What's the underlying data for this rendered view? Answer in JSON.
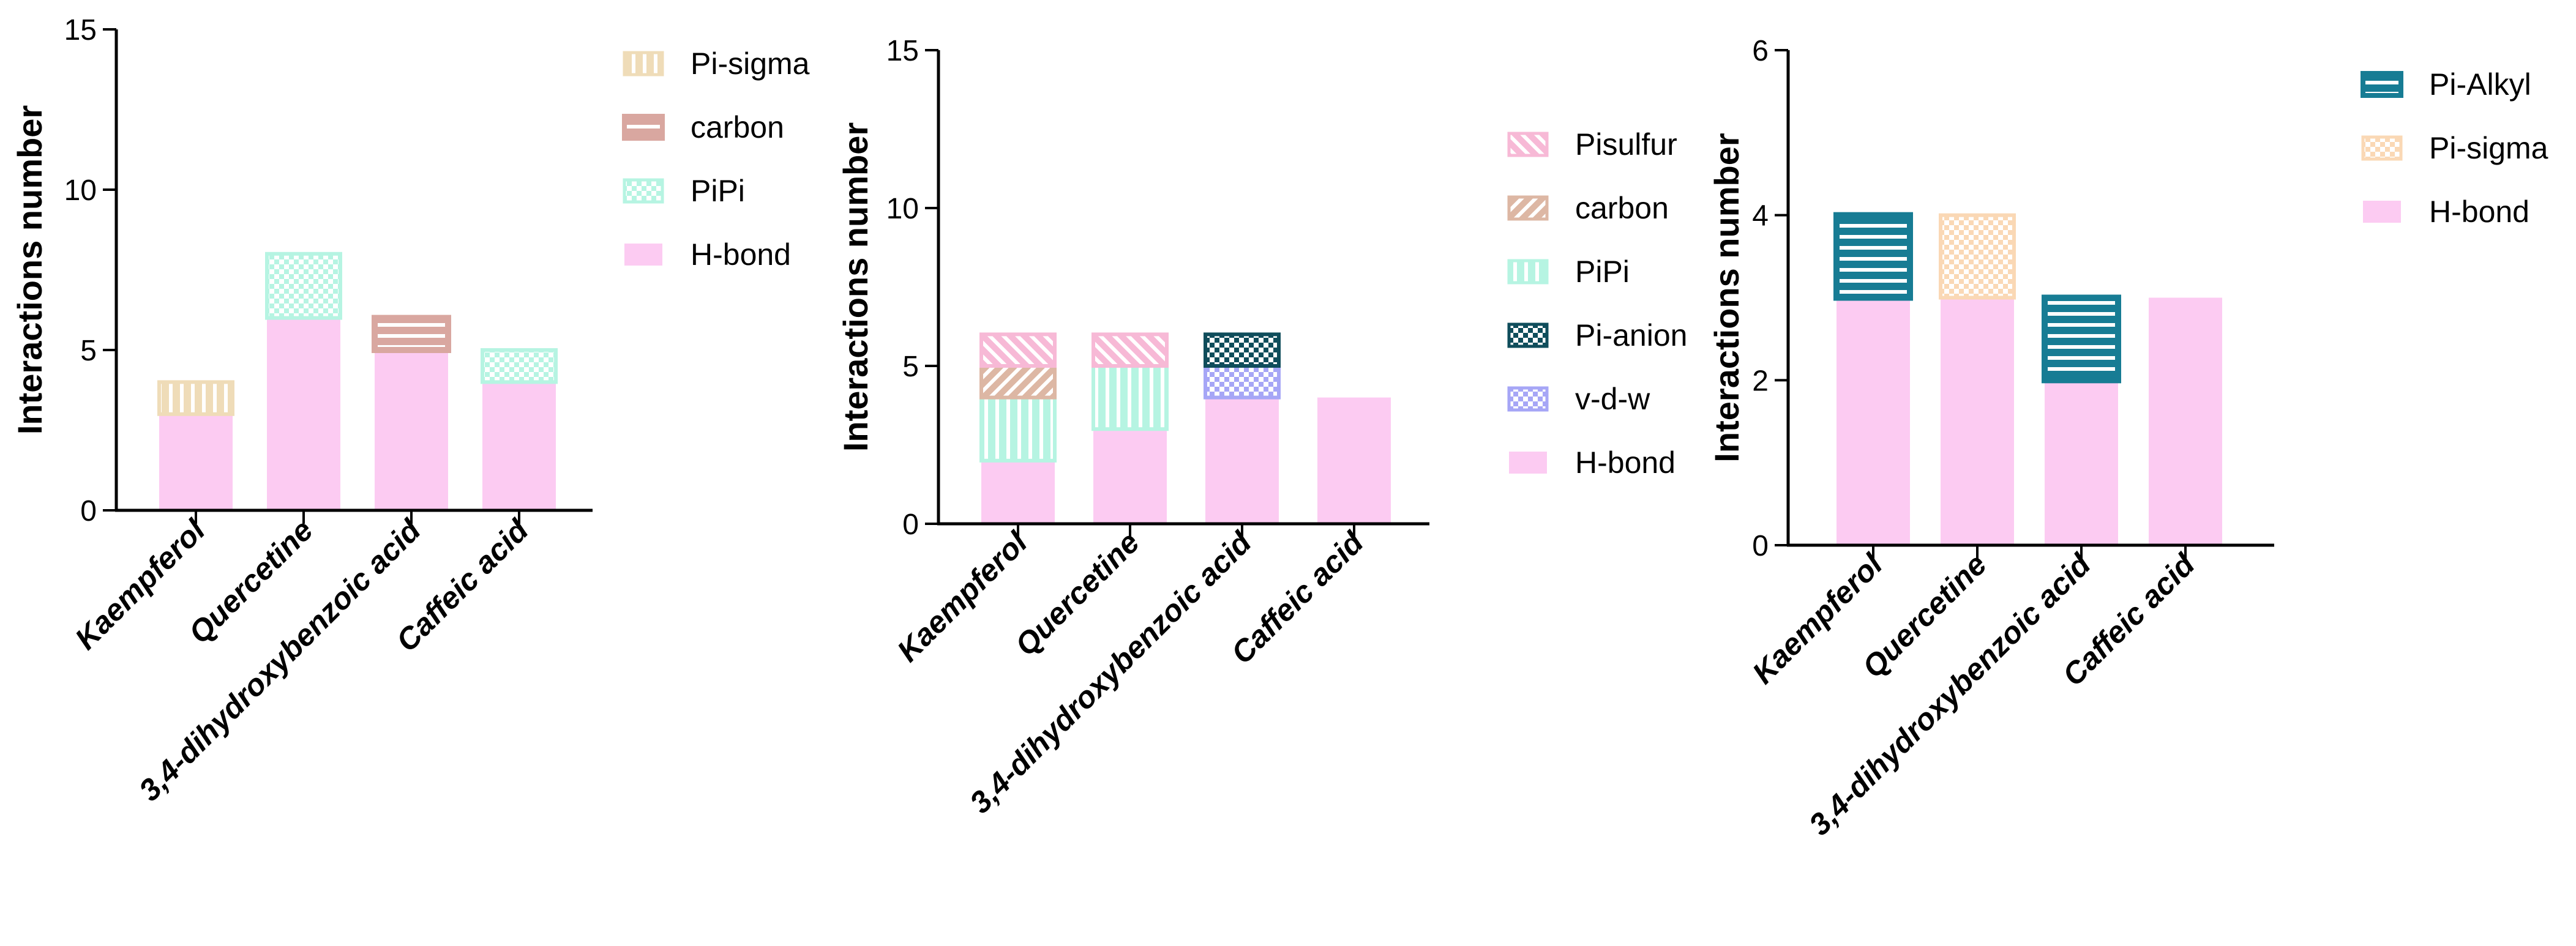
{
  "colors": {
    "hbond": "#fccbf2",
    "pipi": "#b6f4e2",
    "carbon": "#d9a7a0",
    "carbon_b": "#ddb7a4",
    "pisigma_1": "#efdcb8",
    "pisigma_3": "#fad8b5",
    "pisulfur": "#f7b9d6",
    "pianion": "#0f4d5b",
    "vdw": "#a6a6f6",
    "pialkyl": "#177c94"
  },
  "chart_data": [
    {
      "type": "bar",
      "stacked": true,
      "categories": [
        "Kaempferol",
        "Quercetine",
        "3,4-dihydroxybenzoic acid",
        "Caffeic acid"
      ],
      "ylabel": "Interactions number",
      "ylim": [
        0,
        15
      ],
      "yticks": [
        "0",
        "5",
        "10",
        "15"
      ],
      "series": [
        {
          "name": "H-bond",
          "values": [
            3,
            6,
            5,
            4
          ],
          "color": "#fccbf2",
          "pattern": "solid"
        },
        {
          "name": "PiPi",
          "values": [
            0,
            2,
            0,
            1
          ],
          "color": "#b6f4e2",
          "pattern": "checker"
        },
        {
          "name": "carbon",
          "values": [
            0,
            0,
            1,
            0
          ],
          "color": "#d9a7a0",
          "pattern": "hstripe"
        },
        {
          "name": "Pi-sigma",
          "values": [
            1,
            0,
            0,
            0
          ],
          "color": "#efdcb8",
          "pattern": "vstripe"
        }
      ],
      "legend_order": [
        "Pi-sigma",
        "carbon",
        "PiPi",
        "H-bond"
      ],
      "legend": "right"
    },
    {
      "type": "bar",
      "stacked": true,
      "categories": [
        "Kaempferol",
        "Quercetine",
        "3,4-dihydroxybenzoic acid",
        "Caffeic acid"
      ],
      "ylabel": "Interactions number",
      "ylim": [
        0,
        15
      ],
      "yticks": [
        "0",
        "5",
        "10",
        "15"
      ],
      "series": [
        {
          "name": "H-bond",
          "values": [
            2,
            3,
            4,
            4
          ],
          "color": "#fccbf2",
          "pattern": "solid"
        },
        {
          "name": "v-d-w",
          "values": [
            0,
            0,
            1,
            0
          ],
          "color": "#a6a6f6",
          "pattern": "checker"
        },
        {
          "name": "Pi-anion",
          "values": [
            0,
            0,
            1,
            0
          ],
          "color": "#0f4d5b",
          "pattern": "checker"
        },
        {
          "name": "PiPi",
          "values": [
            2,
            2,
            0,
            0
          ],
          "color": "#b6f4e2",
          "pattern": "vstripe"
        },
        {
          "name": "carbon",
          "values": [
            1,
            0,
            0,
            0
          ],
          "color": "#ddb7a4",
          "pattern": "diag"
        },
        {
          "name": "Pisulfur",
          "values": [
            1,
            1,
            0,
            0
          ],
          "color": "#f7b9d6",
          "pattern": "diagrev"
        }
      ],
      "legend_order": [
        "Pisulfur",
        "carbon",
        "PiPi",
        "Pi-anion",
        "v-d-w",
        "H-bond"
      ],
      "legend": "right"
    },
    {
      "type": "bar",
      "stacked": true,
      "categories": [
        "Kaempferol",
        "Quercetine",
        "3,4-dihydroxybenzoic acid",
        "Caffeic acid"
      ],
      "ylabel": "Interactions number",
      "ylim": [
        0,
        6
      ],
      "yticks": [
        "0",
        "2",
        "4",
        "6"
      ],
      "series": [
        {
          "name": "H-bond",
          "values": [
            3,
            3,
            2,
            3
          ],
          "color": "#fccbf2",
          "pattern": "solid"
        },
        {
          "name": "Pi-sigma",
          "values": [
            0,
            1,
            0,
            0
          ],
          "color": "#fad8b5",
          "pattern": "checker"
        },
        {
          "name": "Pi-Alkyl",
          "values": [
            1,
            0,
            1,
            0
          ],
          "color": "#177c94",
          "pattern": "hstripe"
        }
      ],
      "legend_order": [
        "Pi-Alkyl",
        "Pi-sigma",
        "H-bond"
      ],
      "legend": "right"
    }
  ]
}
